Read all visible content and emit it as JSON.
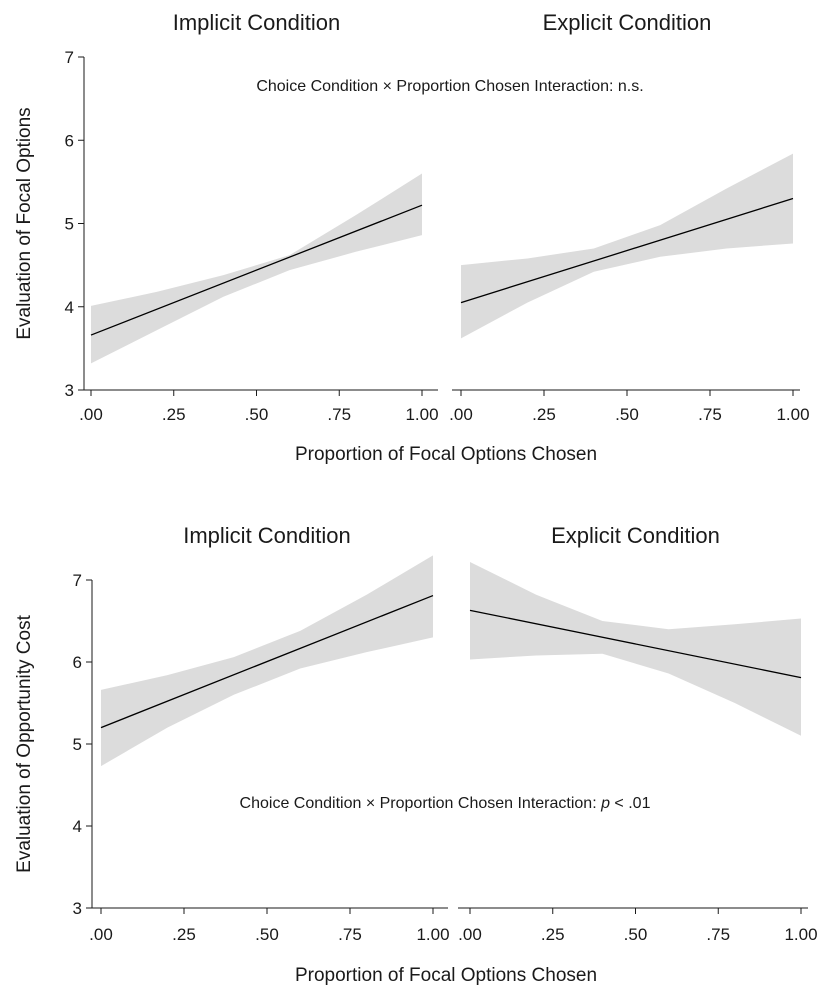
{
  "chart_data": [
    {
      "type": "line",
      "ylabel": "Evaluation of Focal Options",
      "xlabel": "Proportion of Focal Options Chosen",
      "ylim": [
        3,
        7
      ],
      "y_ticks": [
        "3",
        "4",
        "5",
        "6",
        "7"
      ],
      "x_ticks": [
        {
          "value": 0,
          "label": ".00"
        },
        {
          "value": 0.25,
          "label": ".25"
        },
        {
          "value": 0.5,
          "label": ".50"
        },
        {
          "value": 0.75,
          "label": ".75"
        },
        {
          "value": 1,
          "label": "1.00"
        }
      ],
      "xlim": [
        0,
        1
      ],
      "annotation": {
        "prefix": "Choice Condition × Proportion Chosen Interaction: n.s.",
        "italic": "",
        "suffix": ""
      },
      "grid": false,
      "panels": [
        {
          "title": "Implicit Condition",
          "fit": {
            "x": [
              0,
              1
            ],
            "y": [
              3.66,
              5.22
            ]
          },
          "ci_band": {
            "x": [
              0,
              0.2,
              0.4,
              0.6,
              0.8,
              1
            ],
            "lower": [
              3.32,
              3.72,
              4.12,
              4.44,
              4.66,
              4.86
            ],
            "upper": [
              4.01,
              4.18,
              4.38,
              4.62,
              5.1,
              5.6
            ]
          }
        },
        {
          "title": "Explicit Condition",
          "fit": {
            "x": [
              0,
              1
            ],
            "y": [
              4.05,
              5.3
            ]
          },
          "ci_band": {
            "x": [
              0,
              0.2,
              0.4,
              0.6,
              0.8,
              1
            ],
            "lower": [
              3.62,
              4.05,
              4.42,
              4.6,
              4.7,
              4.76
            ],
            "upper": [
              4.5,
              4.58,
              4.7,
              4.98,
              5.42,
              5.84
            ]
          }
        }
      ]
    },
    {
      "type": "line",
      "ylabel": "Evaluation of Opportunity Cost",
      "xlabel": "Proportion of Focal Options Chosen",
      "ylim": [
        3,
        7
      ],
      "y_ticks": [
        "3",
        "4",
        "5",
        "6",
        "7"
      ],
      "x_ticks": [
        {
          "value": 0,
          "label": ".00"
        },
        {
          "value": 0.25,
          "label": ".25"
        },
        {
          "value": 0.5,
          "label": ".50"
        },
        {
          "value": 0.75,
          "label": ".75"
        },
        {
          "value": 1,
          "label": "1.00"
        }
      ],
      "xlim": [
        0,
        1
      ],
      "annotation": {
        "prefix": "Choice Condition × Proportion Chosen Interaction: ",
        "italic": "p",
        "suffix": " < .01"
      },
      "grid": false,
      "panels": [
        {
          "title": "Implicit Condition",
          "fit": {
            "x": [
              0,
              1
            ],
            "y": [
              5.2,
              6.81
            ]
          },
          "ci_band": {
            "x": [
              0,
              0.2,
              0.4,
              0.6,
              0.8,
              1
            ],
            "lower": [
              4.73,
              5.2,
              5.6,
              5.92,
              6.12,
              6.3
            ],
            "upper": [
              5.66,
              5.84,
              6.06,
              6.38,
              6.82,
              7.3
            ]
          }
        },
        {
          "title": "Explicit Condition",
          "fit": {
            "x": [
              0,
              1
            ],
            "y": [
              6.63,
              5.81
            ]
          },
          "ci_band": {
            "x": [
              0,
              0.2,
              0.4,
              0.6,
              0.8,
              1
            ],
            "lower": [
              6.03,
              6.08,
              6.1,
              5.86,
              5.5,
              5.1
            ],
            "upper": [
              7.22,
              6.82,
              6.5,
              6.4,
              6.46,
              6.53
            ]
          }
        }
      ]
    }
  ]
}
